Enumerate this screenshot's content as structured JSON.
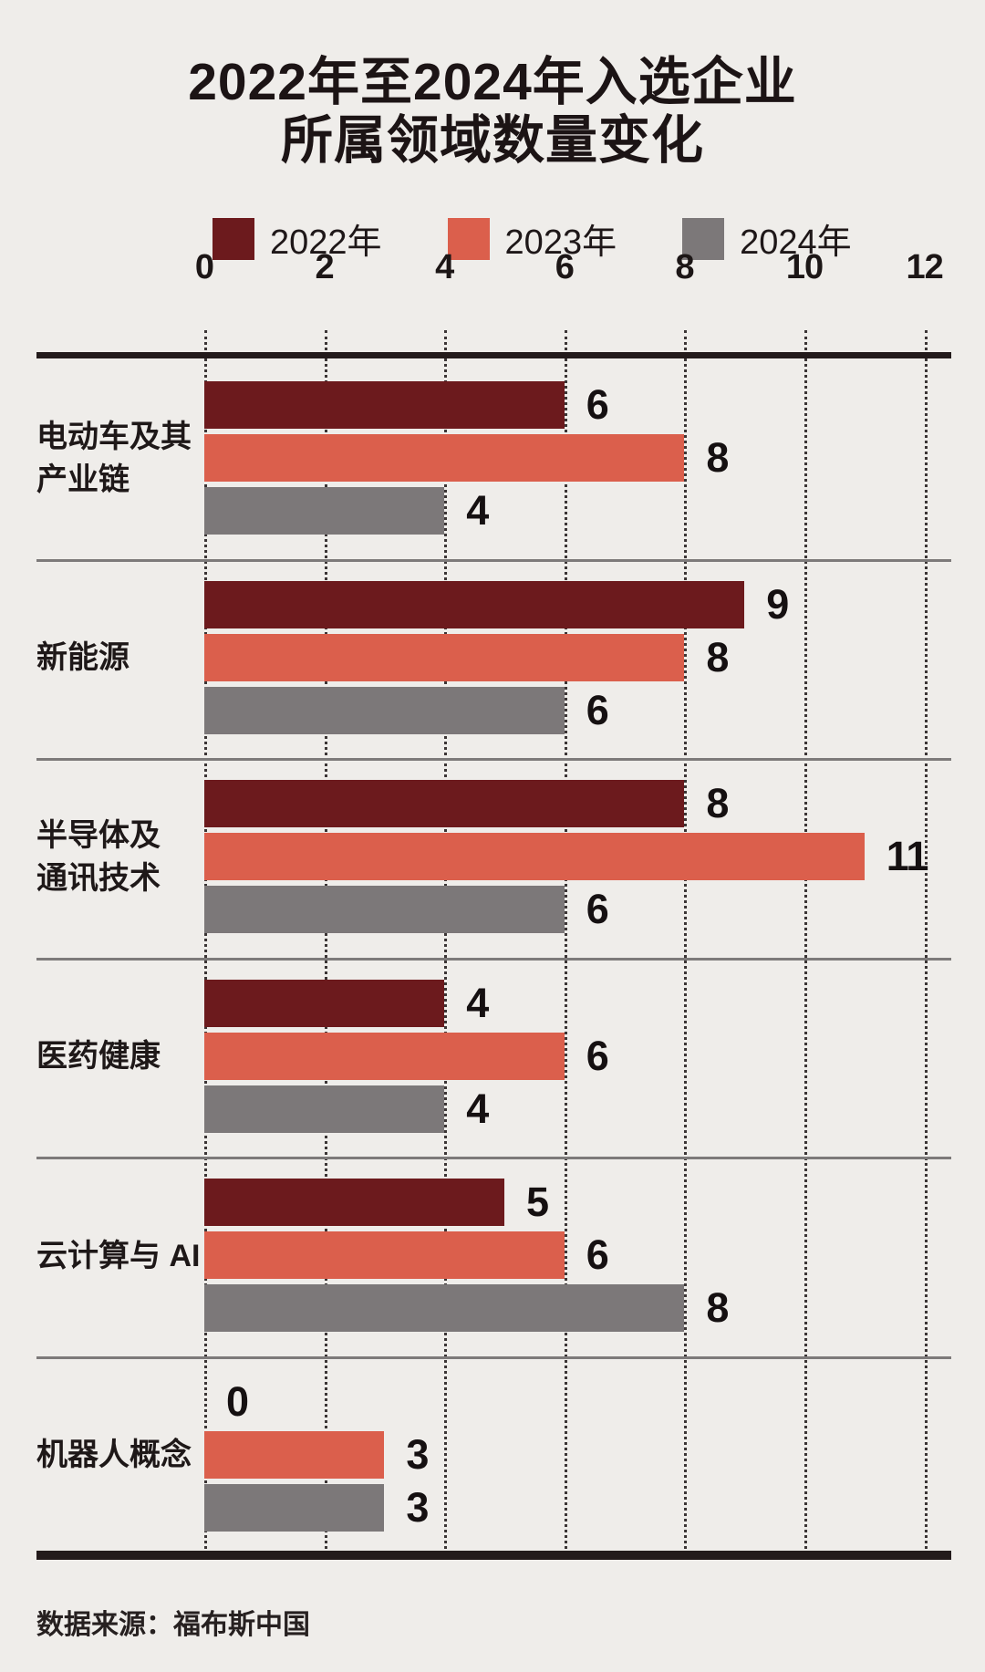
{
  "title": {
    "line1": "2022年至2024年入选企业",
    "line2": "所属领域数量变化"
  },
  "legend": {
    "items": [
      {
        "label": "2022年",
        "color": "#6c1a1d"
      },
      {
        "label": "2023年",
        "color": "#db5f4c"
      },
      {
        "label": "2024年",
        "color": "#7c7879"
      }
    ]
  },
  "source": "数据来源：福布斯中国",
  "colors": {
    "background": "#efedea",
    "axis_line": "#231b1b",
    "separator": "#7d7a7a",
    "gridline": "#3b3535",
    "text": "#1c1415"
  },
  "chart_data": {
    "type": "bar",
    "orientation": "horizontal",
    "title": "2022年至2024年入选企业所属领域数量变化",
    "categories": [
      "电动车及其产业链",
      "新能源",
      "半导体及通讯技术",
      "医药健康",
      "云计算与 AI",
      "机器人概念"
    ],
    "category_display_lines": [
      [
        "电动车及其",
        "产业链"
      ],
      [
        "新能源"
      ],
      [
        "半导体及",
        "通讯技术"
      ],
      [
        "医药健康"
      ],
      [
        "云计算与 AI"
      ],
      [
        "机器人概念"
      ]
    ],
    "series": [
      {
        "name": "2022年",
        "color": "#6c1a1d",
        "values": [
          6,
          9,
          8,
          4,
          5,
          0
        ]
      },
      {
        "name": "2023年",
        "color": "#db5f4c",
        "values": [
          8,
          8,
          11,
          6,
          6,
          3
        ]
      },
      {
        "name": "2024年",
        "color": "#7c7879",
        "values": [
          4,
          6,
          6,
          4,
          8,
          3
        ]
      }
    ],
    "x_ticks": [
      0,
      2,
      4,
      6,
      8,
      10,
      12
    ],
    "xlim": [
      0,
      12
    ],
    "grid": "dotted-vertical-at-even-values",
    "legend_position": "top",
    "value_labels": "right-of-bar-end",
    "source": "数据来源：福布斯中国"
  }
}
